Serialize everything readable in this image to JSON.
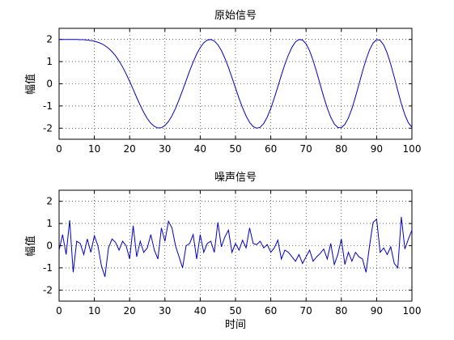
{
  "figure": {
    "background": "#ffffff",
    "line_color": "#0000cc"
  },
  "chart_data": [
    {
      "type": "line",
      "title": "原始信号",
      "xlabel": "",
      "ylabel": "幅值",
      "xlim": [
        0,
        100
      ],
      "ylim": [
        -2.5,
        2.5
      ],
      "xticks": [
        0,
        10,
        20,
        30,
        40,
        50,
        60,
        70,
        80,
        90,
        100
      ],
      "yticks": [
        -2,
        -1,
        0,
        1,
        2
      ],
      "grid": true,
      "series": [
        {
          "x": [
            0,
            1,
            2,
            3,
            4,
            5,
            6,
            7,
            8,
            9,
            10,
            11,
            12,
            13,
            14,
            15,
            16,
            17,
            18,
            19,
            20,
            21,
            22,
            23,
            24,
            25,
            26,
            27,
            28,
            29,
            30,
            31,
            32,
            33,
            34,
            35,
            36,
            37,
            38,
            39,
            40,
            41,
            42,
            43,
            44,
            45,
            46,
            47,
            48,
            49,
            50,
            51,
            52,
            53,
            54,
            55,
            56,
            57,
            58,
            59,
            60,
            61,
            62,
            63,
            64,
            65,
            66,
            67,
            68,
            69,
            70,
            71,
            72,
            73,
            74,
            75,
            76,
            77,
            78,
            79,
            80,
            81,
            82,
            83,
            84,
            85,
            86,
            87,
            88,
            89,
            90,
            91,
            92,
            93,
            94,
            95,
            96,
            97,
            98,
            99,
            100
          ],
          "y": [
            2.0,
            2.0,
            2.0,
            2.0,
            2.0,
            2.0,
            1.99,
            1.99,
            1.97,
            1.95,
            1.92,
            1.87,
            1.81,
            1.72,
            1.6,
            1.45,
            1.26,
            1.03,
            0.76,
            0.45,
            0.11,
            -0.25,
            -0.62,
            -0.97,
            -1.29,
            -1.57,
            -1.78,
            -1.92,
            -1.99,
            -1.98,
            -1.88,
            -1.7,
            -1.44,
            -1.11,
            -0.72,
            -0.3,
            0.14,
            0.58,
            0.98,
            1.34,
            1.63,
            1.85,
            1.97,
            2.0,
            1.93,
            1.76,
            1.5,
            1.15,
            0.74,
            0.28,
            -0.19,
            -0.66,
            -1.08,
            -1.45,
            -1.74,
            -1.93,
            -2.0,
            -1.96,
            -1.79,
            -1.5,
            -1.11,
            -0.64,
            -0.13,
            0.39,
            0.88,
            1.3,
            1.65,
            1.89,
            2.0,
            1.97,
            1.8,
            1.49,
            1.05,
            0.53,
            -0.03,
            -0.59,
            -1.09,
            -1.51,
            -1.81,
            -1.97,
            -1.98,
            -1.83,
            -1.54,
            -1.12,
            -0.59,
            -0.02,
            0.56,
            1.09,
            1.53,
            1.84,
            1.99,
            1.96,
            1.75,
            1.38,
            0.88,
            0.3,
            -0.31,
            -0.9,
            -1.4,
            -1.76,
            -1.96
          ]
        }
      ]
    },
    {
      "type": "line",
      "title": "噪声信号",
      "xlabel": "时间",
      "ylabel": "幅值",
      "xlim": [
        0,
        100
      ],
      "ylim": [
        -2.5,
        2.5
      ],
      "xticks": [
        0,
        10,
        20,
        30,
        40,
        50,
        60,
        70,
        80,
        90,
        100
      ],
      "yticks": [
        -2,
        -1,
        0,
        1,
        2
      ],
      "grid": true,
      "series": [
        {
          "x": [
            0,
            1,
            2,
            3,
            4,
            5,
            6,
            7,
            8,
            9,
            10,
            11,
            12,
            13,
            14,
            15,
            16,
            17,
            18,
            19,
            20,
            21,
            22,
            23,
            24,
            25,
            26,
            27,
            28,
            29,
            30,
            31,
            32,
            33,
            34,
            35,
            36,
            37,
            38,
            39,
            40,
            41,
            42,
            43,
            44,
            45,
            46,
            47,
            48,
            49,
            50,
            51,
            52,
            53,
            54,
            55,
            56,
            57,
            58,
            59,
            60,
            61,
            62,
            63,
            64,
            65,
            66,
            67,
            68,
            69,
            70,
            71,
            72,
            73,
            74,
            75,
            76,
            77,
            78,
            79,
            80,
            81,
            82,
            83,
            84,
            85,
            86,
            87,
            88,
            89,
            90,
            91,
            92,
            93,
            94,
            95,
            96,
            97,
            98,
            99,
            100
          ],
          "y": [
            -0.2,
            0.5,
            -0.4,
            1.15,
            -1.2,
            0.2,
            0.1,
            -0.4,
            0.3,
            -0.3,
            0.45,
            0.0,
            -0.9,
            -1.4,
            -0.1,
            0.3,
            0.15,
            -0.2,
            0.2,
            0.0,
            -0.6,
            0.9,
            -0.5,
            0.2,
            -0.3,
            -0.1,
            0.5,
            -0.2,
            -0.6,
            0.8,
            0.2,
            1.1,
            0.8,
            0.0,
            -0.5,
            -1.0,
            0.0,
            0.1,
            0.5,
            -0.6,
            0.5,
            -0.3,
            0.1,
            0.2,
            -0.3,
            1.05,
            -0.05,
            0.4,
            0.7,
            -0.3,
            0.1,
            -0.2,
            0.25,
            -0.1,
            0.8,
            0.1,
            0.05,
            0.2,
            -0.1,
            0.05,
            -0.3,
            -0.1,
            0.25,
            -0.6,
            -0.2,
            -0.3,
            -0.5,
            -0.7,
            -0.4,
            -0.8,
            -0.5,
            -0.2,
            -0.7,
            -0.5,
            -0.35,
            -0.15,
            -0.6,
            0.1,
            -0.85,
            -0.4,
            0.3,
            -0.85,
            -0.3,
            -0.7,
            -0.3,
            -0.5,
            -0.6,
            -1.2,
            0.0,
            1.05,
            1.2,
            -0.3,
            -0.1,
            -0.4,
            -0.05,
            -0.8,
            -1.0,
            1.3,
            -0.15,
            0.3,
            0.7
          ]
        }
      ]
    }
  ]
}
